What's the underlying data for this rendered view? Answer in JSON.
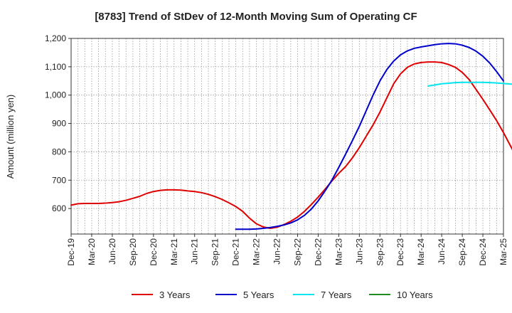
{
  "chart_data": {
    "type": "line",
    "title": "[8783]  Trend of StDev of 12-Month Moving Sum of Operating CF",
    "xlabel": "",
    "ylabel": "Amount (million yen)",
    "ylim": [
      510,
      1200
    ],
    "yticks": [
      600,
      700,
      800,
      900,
      1000,
      1100,
      1200
    ],
    "ytick_labels": [
      "600",
      "700",
      "800",
      "900",
      "1,000",
      "1,100",
      "1,200"
    ],
    "x_start": "Dec-19",
    "x_months": 63,
    "xtick_labels": [
      "Dec-19",
      "Mar-20",
      "Jun-20",
      "Sep-20",
      "Dec-20",
      "Mar-21",
      "Jun-21",
      "Sep-21",
      "Dec-21",
      "Mar-22",
      "Jun-22",
      "Sep-22",
      "Dec-22",
      "Mar-23",
      "Jun-23",
      "Sep-23",
      "Dec-23",
      "Mar-24",
      "Jun-24",
      "Sep-24",
      "Dec-24",
      "Mar-25"
    ],
    "grid": true,
    "legend_position": "bottom",
    "series": [
      {
        "name": "3 Years",
        "color": "#e00000",
        "start_index": 0,
        "values": [
          612,
          617,
          618,
          618,
          618,
          619,
          621,
          624,
          629,
          636,
          643,
          653,
          660,
          664,
          666,
          666,
          665,
          662,
          660,
          656,
          650,
          642,
          632,
          620,
          607,
          590,
          566,
          546,
          535,
          530,
          534,
          543,
          555,
          570,
          590,
          614,
          640,
          668,
          697,
          724,
          748,
          779,
          815,
          855,
          895,
          940,
          990,
          1040,
          1075,
          1098,
          1110,
          1115,
          1117,
          1117,
          1115,
          1108,
          1098,
          1080,
          1055,
          1020,
          985,
          948,
          910,
          868,
          822,
          776
        ]
      },
      {
        "name": "5 Years",
        "color": "#0000cc",
        "start_index": 24,
        "values": [
          527,
          527,
          527,
          528,
          530,
          533,
          537,
          542,
          549,
          560,
          576,
          598,
          627,
          662,
          700,
          745,
          792,
          840,
          890,
          945,
          1000,
          1050,
          1090,
          1120,
          1142,
          1156,
          1165,
          1170,
          1174,
          1178,
          1181,
          1182,
          1181,
          1176,
          1168,
          1155,
          1137,
          1113,
          1083,
          1050
        ]
      },
      {
        "name": "7 Years",
        "color": "#00e5ee",
        "start_index": 52,
        "values": [
          1032,
          1036,
          1040,
          1042,
          1044,
          1045,
          1045,
          1045,
          1045,
          1044,
          1043,
          1041,
          1039,
          1037
        ]
      },
      {
        "name": "10 Years",
        "color": "#228b22",
        "start_index": 0,
        "values": []
      }
    ]
  }
}
